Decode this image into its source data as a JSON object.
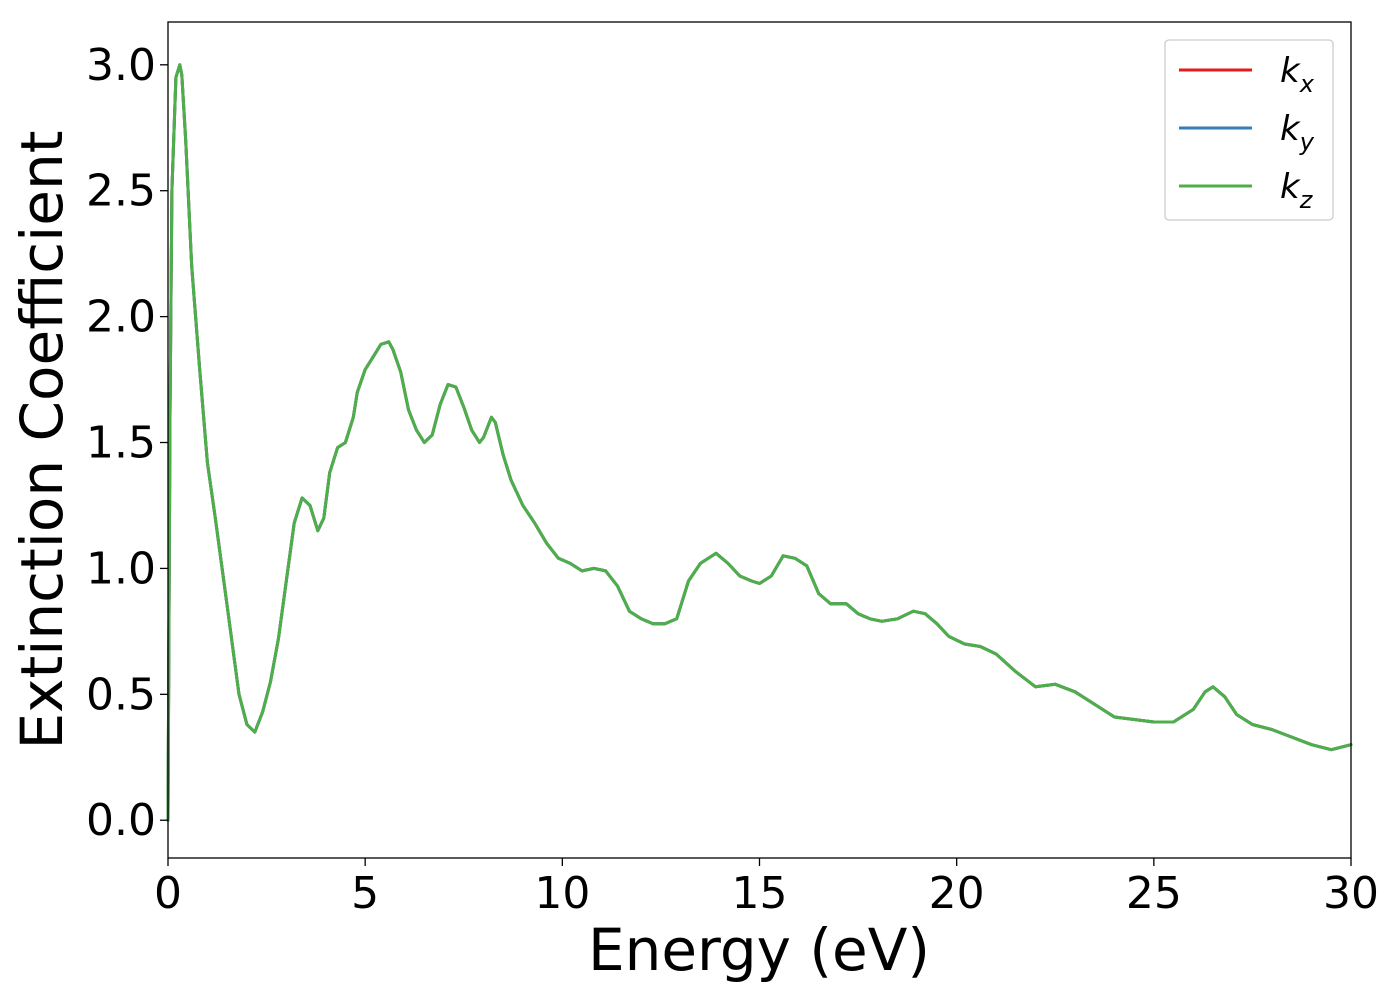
{
  "chart_data": {
    "type": "line",
    "title": "",
    "xlabel": "Energy (eV)",
    "ylabel": "Extinction Coefficient",
    "xlim": [
      0,
      30
    ],
    "ylim": [
      -0.15,
      3.17
    ],
    "xticks": [
      0,
      5,
      10,
      15,
      20,
      25,
      30
    ],
    "xtick_labels": [
      "0",
      "5",
      "10",
      "15",
      "20",
      "25",
      "30"
    ],
    "yticks": [
      0.0,
      0.5,
      1.0,
      1.5,
      2.0,
      2.5,
      3.0
    ],
    "ytick_labels": [
      "0.0",
      "0.5",
      "1.0",
      "1.5",
      "2.0",
      "2.5",
      "3.0"
    ],
    "grid": false,
    "legend_position": "top-right",
    "x": [
      0,
      0.05,
      0.1,
      0.2,
      0.3,
      0.35,
      0.45,
      0.6,
      0.8,
      1.0,
      1.2,
      1.5,
      1.8,
      2.0,
      2.2,
      2.4,
      2.6,
      2.8,
      3.0,
      3.2,
      3.4,
      3.6,
      3.8,
      3.95,
      4.1,
      4.3,
      4.5,
      4.7,
      4.8,
      5.0,
      5.2,
      5.4,
      5.6,
      5.7,
      5.9,
      6.1,
      6.3,
      6.5,
      6.7,
      6.9,
      7.1,
      7.3,
      7.5,
      7.7,
      7.9,
      8.0,
      8.2,
      8.3,
      8.5,
      8.7,
      9.0,
      9.3,
      9.6,
      9.9,
      10.2,
      10.5,
      10.8,
      11.1,
      11.4,
      11.7,
      12.0,
      12.3,
      12.6,
      12.9,
      13.2,
      13.5,
      13.9,
      14.2,
      14.5,
      14.8,
      15.0,
      15.3,
      15.6,
      15.9,
      16.2,
      16.5,
      16.8,
      17.2,
      17.5,
      17.8,
      18.1,
      18.5,
      18.9,
      19.2,
      19.5,
      19.8,
      20.2,
      20.6,
      21.0,
      21.5,
      22.0,
      22.5,
      23.0,
      23.5,
      24.0,
      24.5,
      25.0,
      25.5,
      26.0,
      26.3,
      26.5,
      26.8,
      27.1,
      27.5,
      28.0,
      28.5,
      29.0,
      29.5,
      30.0
    ],
    "series": [
      {
        "name": "k_x",
        "color": "#e41a1c",
        "values": [
          0.0,
          1.6,
          2.5,
          2.95,
          3.0,
          2.96,
          2.7,
          2.2,
          1.8,
          1.42,
          1.2,
          0.85,
          0.5,
          0.38,
          0.35,
          0.43,
          0.55,
          0.72,
          0.95,
          1.18,
          1.28,
          1.25,
          1.15,
          1.2,
          1.38,
          1.48,
          1.5,
          1.6,
          1.7,
          1.79,
          1.84,
          1.89,
          1.9,
          1.87,
          1.78,
          1.63,
          1.55,
          1.5,
          1.53,
          1.65,
          1.73,
          1.72,
          1.64,
          1.55,
          1.5,
          1.52,
          1.6,
          1.58,
          1.45,
          1.35,
          1.25,
          1.18,
          1.1,
          1.04,
          1.02,
          0.99,
          1.0,
          0.99,
          0.93,
          0.83,
          0.8,
          0.78,
          0.78,
          0.8,
          0.95,
          1.02,
          1.06,
          1.02,
          0.97,
          0.95,
          0.94,
          0.97,
          1.05,
          1.04,
          1.01,
          0.9,
          0.86,
          0.86,
          0.82,
          0.8,
          0.79,
          0.8,
          0.83,
          0.82,
          0.78,
          0.73,
          0.7,
          0.69,
          0.66,
          0.59,
          0.53,
          0.54,
          0.51,
          0.46,
          0.41,
          0.4,
          0.39,
          0.39,
          0.44,
          0.51,
          0.53,
          0.49,
          0.42,
          0.38,
          0.36,
          0.33,
          0.3,
          0.28,
          0.3
        ]
      },
      {
        "name": "k_y",
        "color": "#377eb8",
        "values": [
          0.0,
          1.6,
          2.5,
          2.95,
          3.0,
          2.96,
          2.7,
          2.2,
          1.8,
          1.42,
          1.2,
          0.85,
          0.5,
          0.38,
          0.35,
          0.43,
          0.55,
          0.72,
          0.95,
          1.18,
          1.28,
          1.25,
          1.15,
          1.2,
          1.38,
          1.48,
          1.5,
          1.6,
          1.7,
          1.79,
          1.84,
          1.89,
          1.9,
          1.87,
          1.78,
          1.63,
          1.55,
          1.5,
          1.53,
          1.65,
          1.73,
          1.72,
          1.64,
          1.55,
          1.5,
          1.52,
          1.6,
          1.58,
          1.45,
          1.35,
          1.25,
          1.18,
          1.1,
          1.04,
          1.02,
          0.99,
          1.0,
          0.99,
          0.93,
          0.83,
          0.8,
          0.78,
          0.78,
          0.8,
          0.95,
          1.02,
          1.06,
          1.02,
          0.97,
          0.95,
          0.94,
          0.97,
          1.05,
          1.04,
          1.01,
          0.9,
          0.86,
          0.86,
          0.82,
          0.8,
          0.79,
          0.8,
          0.83,
          0.82,
          0.78,
          0.73,
          0.7,
          0.69,
          0.66,
          0.59,
          0.53,
          0.54,
          0.51,
          0.46,
          0.41,
          0.4,
          0.39,
          0.39,
          0.44,
          0.51,
          0.53,
          0.49,
          0.42,
          0.38,
          0.36,
          0.33,
          0.3,
          0.28,
          0.3
        ]
      },
      {
        "name": "k_z",
        "color": "#4daf4a",
        "values": [
          0.0,
          1.6,
          2.5,
          2.95,
          3.0,
          2.96,
          2.7,
          2.2,
          1.8,
          1.42,
          1.2,
          0.85,
          0.5,
          0.38,
          0.35,
          0.43,
          0.55,
          0.72,
          0.95,
          1.18,
          1.28,
          1.25,
          1.15,
          1.2,
          1.38,
          1.48,
          1.5,
          1.6,
          1.7,
          1.79,
          1.84,
          1.89,
          1.9,
          1.87,
          1.78,
          1.63,
          1.55,
          1.5,
          1.53,
          1.65,
          1.73,
          1.72,
          1.64,
          1.55,
          1.5,
          1.52,
          1.6,
          1.58,
          1.45,
          1.35,
          1.25,
          1.18,
          1.1,
          1.04,
          1.02,
          0.99,
          1.0,
          0.99,
          0.93,
          0.83,
          0.8,
          0.78,
          0.78,
          0.8,
          0.95,
          1.02,
          1.06,
          1.02,
          0.97,
          0.95,
          0.94,
          0.97,
          1.05,
          1.04,
          1.01,
          0.9,
          0.86,
          0.86,
          0.82,
          0.8,
          0.79,
          0.8,
          0.83,
          0.82,
          0.78,
          0.73,
          0.7,
          0.69,
          0.66,
          0.59,
          0.53,
          0.54,
          0.51,
          0.46,
          0.41,
          0.4,
          0.39,
          0.39,
          0.44,
          0.51,
          0.53,
          0.49,
          0.42,
          0.38,
          0.36,
          0.33,
          0.3,
          0.28,
          0.3
        ]
      }
    ],
    "legend": [
      {
        "base": "k",
        "sub": "x",
        "color": "#e41a1c"
      },
      {
        "base": "k",
        "sub": "y",
        "color": "#377eb8"
      },
      {
        "base": "k",
        "sub": "z",
        "color": "#4daf4a"
      }
    ]
  }
}
